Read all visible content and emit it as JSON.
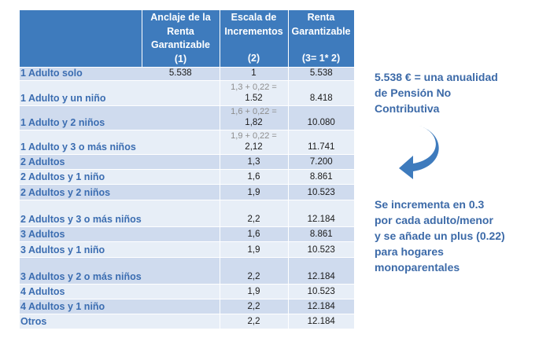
{
  "header": {
    "col1": [
      "Anclaje de la",
      "Renta",
      "Garantizable",
      "(1)"
    ],
    "col2": [
      "Escala de",
      "Incrementos",
      "(2)"
    ],
    "col3": [
      "Renta",
      "Garantizable",
      "(3= 1* 2)"
    ]
  },
  "rows": [
    {
      "label": "1 Adulto solo",
      "anclaje": "5.538",
      "note": "",
      "escala": "1",
      "renta": "5.538"
    },
    {
      "label": "1 Adulto y un niño",
      "anclaje": "",
      "note": "1,3 + 0,22 =",
      "escala": "1.52",
      "renta": "8.418"
    },
    {
      "label": "1 Adulto y 2 niños",
      "anclaje": "",
      "note": "1,6 + 0,22 =",
      "escala": "1,82",
      "renta": "10.080"
    },
    {
      "label": "1 Adulto y 3 o más niños",
      "anclaje": "",
      "note": "1,9 + 0,22 =",
      "escala": "2,12",
      "renta": "11.741"
    },
    {
      "label": "2 Adultos",
      "anclaje": "",
      "note": "",
      "escala": "1,3",
      "renta": "7.200"
    },
    {
      "label": "2 Adultos y 1 niño",
      "anclaje": "",
      "note": "",
      "escala": "1,6",
      "renta": "8.861"
    },
    {
      "label": "2 Adultos y 2 niños",
      "anclaje": "",
      "note": "",
      "escala": "1,9",
      "renta": "10.523"
    },
    {
      "label": "2 Adultos y 3 o más niños",
      "anclaje": "",
      "note": "",
      "escala": "2,2",
      "renta": "12.184"
    },
    {
      "label": "3 Adultos",
      "anclaje": "",
      "note": "",
      "escala": "1,6",
      "renta": "8.861"
    },
    {
      "label": "3 Adultos y 1 niño",
      "anclaje": "",
      "note": "",
      "escala": "1,9",
      "renta": "10.523"
    },
    {
      "label": "3 Adultos y 2  o más niños",
      "anclaje": "",
      "note": "",
      "escala": "2,2",
      "renta": "12.184"
    },
    {
      "label": "4 Adultos",
      "anclaje": "",
      "note": "",
      "escala": "1,9",
      "renta": "10.523"
    },
    {
      "label": "4 Adultos y 1 niño",
      "anclaje": "",
      "note": "",
      "escala": "2,2",
      "renta": "12.184"
    },
    {
      "label": "Otros",
      "anclaje": "",
      "note": "",
      "escala": "2,2",
      "renta": "12.184"
    }
  ],
  "side_notes": {
    "top": [
      "5.538 € = una anualidad",
      "de Pensión No",
      "Contributiva"
    ],
    "bottom": [
      "Se incrementa en 0.3",
      "por cada adulto/menor",
      "y se añade un plus (0.22)",
      "para hogares",
      "monoparentales"
    ]
  },
  "colors": {
    "header_bg": "#3e7bbd",
    "row_dark": "#cfdbee",
    "row_light": "#e7eef7",
    "label_text": "#3b6db1",
    "note_text": "#3c6aa8",
    "arrow": "#3e7bbd"
  },
  "icons": {
    "arrow": "curved-arrow-down-left-icon"
  }
}
